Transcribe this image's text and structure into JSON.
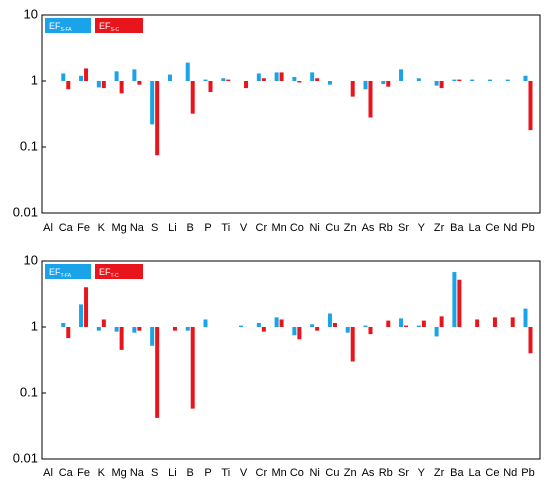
{
  "colors": {
    "series1": "#1aa3e8",
    "series2": "#e8151c"
  },
  "chart_data": [
    {
      "type": "bar",
      "scale": "log",
      "ylim": [
        0.01,
        10
      ],
      "ytick_labels": [
        "0.01",
        "0.1",
        "1",
        "10"
      ],
      "grid": false,
      "legend_position": "top-left",
      "categories": [
        "Al",
        "Ca",
        "Fe",
        "K",
        "Mg",
        "Na",
        "S",
        "Li",
        "B",
        "P",
        "Ti",
        "V",
        "Cr",
        "Mn",
        "Co",
        "Ni",
        "Cu",
        "Zn",
        "As",
        "Rb",
        "Sr",
        "Y",
        "Zr",
        "Ba",
        "La",
        "Ce",
        "Nd",
        "Pb"
      ],
      "series": [
        {
          "name": "EF",
          "subscript": "S-FA",
          "values": [
            null,
            1.3,
            1.2,
            0.8,
            1.4,
            1.5,
            0.22,
            1.25,
            1.9,
            1.05,
            1.1,
            null,
            1.3,
            1.35,
            1.15,
            1.35,
            0.88,
            null,
            0.75,
            0.9,
            1.5,
            1.1,
            0.85,
            1.05,
            1.05,
            1.05,
            1.05,
            1.2
          ]
        },
        {
          "name": "EF",
          "subscript": "S-C",
          "values": [
            null,
            0.75,
            1.55,
            0.78,
            0.65,
            0.88,
            0.075,
            null,
            0.32,
            0.68,
            1.05,
            0.78,
            1.1,
            1.35,
            0.95,
            1.1,
            null,
            0.58,
            0.28,
            0.82,
            null,
            null,
            0.78,
            1.05,
            null,
            null,
            null,
            0.18
          ]
        }
      ]
    },
    {
      "type": "bar",
      "scale": "log",
      "ylim": [
        0.01,
        10
      ],
      "ytick_labels": [
        "0.01",
        "0.1",
        "1",
        "10"
      ],
      "grid": false,
      "legend_position": "top-left",
      "categories": [
        "Al",
        "Ca",
        "Fe",
        "K",
        "Mg",
        "Na",
        "S",
        "Li",
        "B",
        "P",
        "Ti",
        "V",
        "Cr",
        "Mn",
        "Co",
        "Ni",
        "Cu",
        "Zn",
        "As",
        "Rb",
        "Sr",
        "Y",
        "Zr",
        "Ba",
        "La",
        "Ce",
        "Nd",
        "Pb"
      ],
      "series": [
        {
          "name": "EF",
          "subscript": "T-FA",
          "values": [
            null,
            1.15,
            2.2,
            0.88,
            0.85,
            0.82,
            0.52,
            null,
            0.88,
            1.3,
            null,
            1.05,
            1.15,
            1.4,
            0.75,
            1.1,
            1.6,
            0.82,
            1.05,
            null,
            1.35,
            1.05,
            0.72,
            6.8,
            null,
            null,
            null,
            1.9
          ]
        },
        {
          "name": "EF",
          "subscript": "T-C",
          "values": [
            null,
            0.68,
            4.0,
            1.3,
            0.45,
            0.88,
            0.042,
            0.88,
            0.058,
            null,
            null,
            null,
            0.85,
            1.3,
            0.65,
            0.88,
            1.15,
            0.3,
            0.78,
            1.25,
            1.05,
            1.25,
            1.45,
            5.2,
            1.3,
            1.4,
            1.4,
            0.4
          ]
        }
      ]
    }
  ]
}
